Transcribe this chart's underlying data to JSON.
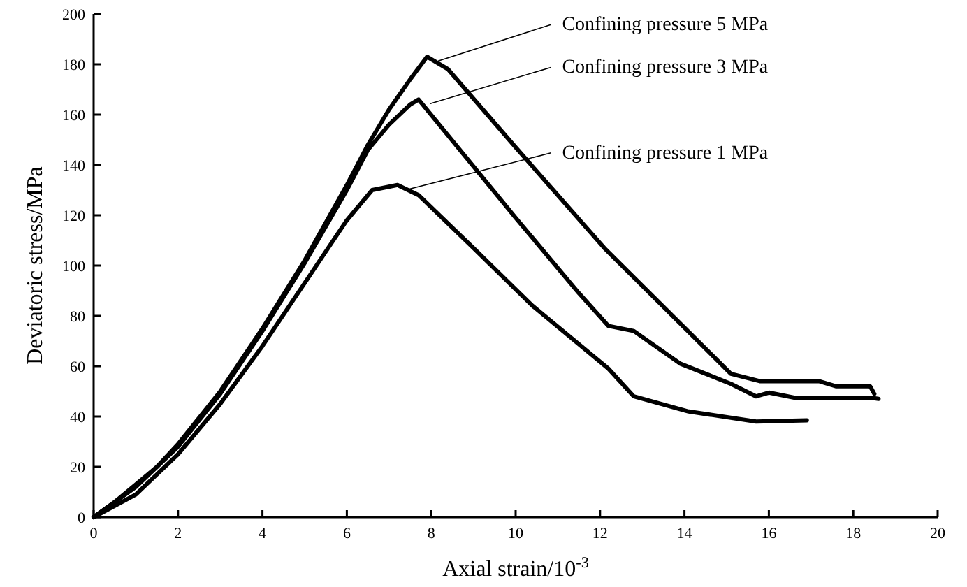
{
  "chart_data": {
    "type": "line",
    "xlabel": "Axial strain/10$^{-3}$",
    "ylabel": "Deviatoric stress/MPa",
    "xlim": [
      0,
      20
    ],
    "xticks": [
      0,
      2,
      4,
      6,
      8,
      10,
      12,
      14,
      16,
      18,
      20
    ],
    "ylim": [
      0,
      200
    ],
    "yticks": [
      0,
      20,
      40,
      60,
      80,
      100,
      120,
      140,
      160,
      180,
      200
    ],
    "grid": false,
    "marker": "none",
    "line_style": "solid",
    "series": [
      {
        "name": "Confining pressure 5 MPa",
        "color": "#000000",
        "x": [
          0,
          0.5,
          1,
          1.5,
          2,
          3,
          4,
          5,
          6,
          6.5,
          7,
          7.5,
          7.9,
          8.4,
          10,
          12.1,
          15.1,
          15.8,
          17.2,
          17.6,
          18.4,
          18.5
        ],
        "values": [
          0,
          6,
          13,
          20,
          29,
          50,
          75,
          102,
          132,
          148,
          162,
          174,
          183,
          178,
          147,
          107,
          57,
          54,
          54,
          52,
          52,
          49
        ]
      },
      {
        "name": "Confining pressure 3 MPa",
        "color": "#000000",
        "x": [
          0,
          1,
          2,
          3,
          4,
          5,
          6,
          6.5,
          7,
          7.5,
          7.7,
          10,
          11.5,
          12.2,
          12.8,
          13.9,
          15.1,
          15.7,
          16,
          16.6,
          18.4,
          18.6
        ],
        "values": [
          0,
          12,
          28,
          49,
          74,
          101,
          130,
          146,
          156,
          164,
          166,
          119,
          89,
          76,
          74,
          61,
          53,
          48,
          49.5,
          47.5,
          47.5,
          47
        ]
      },
      {
        "name": "Confining pressure 1 MPa",
        "color": "#000000",
        "x": [
          0,
          1,
          2,
          3,
          4,
          5,
          6,
          6.6,
          7.2,
          7.7,
          9,
          10.4,
          12.2,
          12.8,
          14.1,
          15.7,
          16.9
        ],
        "values": [
          0,
          9,
          25,
          45,
          68,
          93,
          118,
          130,
          132,
          128,
          107,
          84,
          59,
          48,
          42,
          38,
          38.5
        ]
      }
    ]
  }
}
